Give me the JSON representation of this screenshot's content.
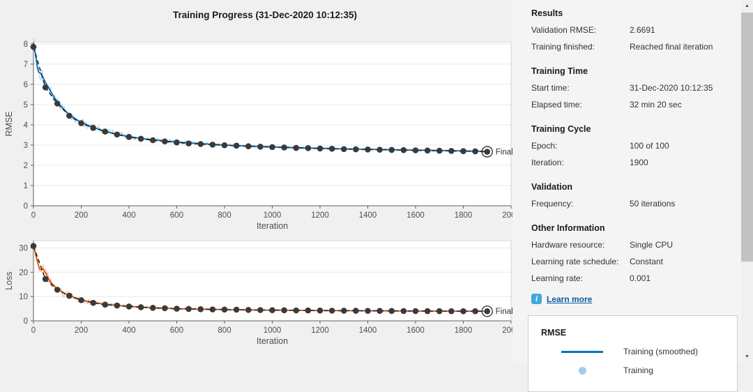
{
  "title": "Training Progress (31-Dec-2020 10:12:35)",
  "icons": {
    "scroll_up": "▲",
    "scroll_down": "▼",
    "info": "i"
  },
  "panel": {
    "sections": [
      {
        "heading": "Results",
        "rows": [
          {
            "label": "Validation RMSE:",
            "value": "2.6691"
          },
          {
            "label": "Training finished:",
            "value": "Reached final iteration"
          }
        ]
      },
      {
        "heading": "Training Time",
        "rows": [
          {
            "label": "Start time:",
            "value": "31-Dec-2020 10:12:35"
          },
          {
            "label": "Elapsed time:",
            "value": "32 min 20 sec"
          }
        ]
      },
      {
        "heading": "Training Cycle",
        "rows": [
          {
            "label": "Epoch:",
            "value": "100 of 100"
          },
          {
            "label": "Iteration:",
            "value": "1900"
          }
        ]
      },
      {
        "heading": "Validation",
        "rows": [
          {
            "label": "Frequency:",
            "value": "50 iterations"
          }
        ]
      },
      {
        "heading": "Other Information",
        "rows": [
          {
            "label": "Hardware resource:",
            "value": "Single CPU"
          },
          {
            "label": "Learning rate schedule:",
            "value": "Constant"
          },
          {
            "label": "Learning rate:",
            "value": "0.001"
          }
        ]
      }
    ],
    "learn_more": "Learn more",
    "legend": {
      "heading": "RMSE",
      "items": [
        {
          "label": "Training (smoothed)",
          "marker": "line",
          "color": "#0072bd"
        },
        {
          "label": "Training",
          "marker": "dot",
          "color": "#9ecfe8"
        }
      ]
    }
  },
  "chart_data": [
    {
      "type": "line",
      "name": "RMSE vs Iteration",
      "xlabel": "Iteration",
      "ylabel": "RMSE",
      "xlim": [
        0,
        2000
      ],
      "ylim": [
        0,
        8.1
      ],
      "xticks": [
        0,
        200,
        400,
        600,
        800,
        1000,
        1200,
        1400,
        1600,
        1800,
        2000
      ],
      "yticks": [
        0,
        1,
        2,
        3,
        4,
        5,
        6,
        7,
        8
      ],
      "grid": "horizontal",
      "series": [
        {
          "name": "Training",
          "style": "raw",
          "color": "#8fc4e8",
          "base": 1,
          "amp": [
            0.3,
            300,
            0.05
          ]
        },
        {
          "name": "Training (smoothed)",
          "style": "solid",
          "color": "#0072bd",
          "x": [
            0,
            8,
            16,
            22,
            30,
            40,
            50,
            65,
            80,
            100,
            120,
            150,
            175,
            200,
            250,
            300,
            350,
            400,
            450,
            500,
            600,
            700,
            800,
            900,
            1000,
            1100,
            1200,
            1300,
            1400,
            1500,
            1600,
            1700,
            1800,
            1900
          ],
          "y": [
            8.05,
            7.5,
            6.9,
            6.6,
            6.55,
            6.35,
            6.1,
            5.8,
            5.5,
            5.12,
            4.85,
            4.5,
            4.3,
            4.12,
            3.87,
            3.68,
            3.53,
            3.42,
            3.33,
            3.26,
            3.15,
            3.07,
            3.0,
            2.95,
            2.91,
            2.87,
            2.84,
            2.81,
            2.79,
            2.77,
            2.75,
            2.73,
            2.71,
            2.68
          ]
        },
        {
          "name": "Validation",
          "style": "dashed-markers",
          "line_color": "#262626",
          "marker_color": "#3a3a3a",
          "x": [
            0,
            50,
            100,
            150,
            200,
            250,
            300,
            350,
            400,
            450,
            500,
            550,
            600,
            650,
            700,
            750,
            800,
            850,
            900,
            950,
            1000,
            1050,
            1100,
            1150,
            1200,
            1250,
            1300,
            1350,
            1400,
            1450,
            1500,
            1550,
            1600,
            1650,
            1700,
            1750,
            1800,
            1850,
            1900
          ],
          "y": [
            7.85,
            5.85,
            5.05,
            4.45,
            4.08,
            3.85,
            3.67,
            3.52,
            3.4,
            3.31,
            3.24,
            3.18,
            3.13,
            3.08,
            3.05,
            3.02,
            2.99,
            2.97,
            2.94,
            2.92,
            2.9,
            2.88,
            2.86,
            2.85,
            2.83,
            2.82,
            2.8,
            2.79,
            2.78,
            2.77,
            2.76,
            2.75,
            2.74,
            2.73,
            2.72,
            2.71,
            2.7,
            2.69,
            2.6691
          ]
        }
      ],
      "final": {
        "label": "Final",
        "x": 1900,
        "y": 2.6691
      }
    },
    {
      "type": "line",
      "name": "Loss vs Iteration",
      "xlabel": "Iteration",
      "ylabel": "Loss",
      "xlim": [
        0,
        2000
      ],
      "ylim": [
        0,
        33
      ],
      "xticks": [
        0,
        200,
        400,
        600,
        800,
        1000,
        1200,
        1400,
        1600,
        1800,
        2000
      ],
      "yticks": [
        0,
        10,
        20,
        30
      ],
      "grid": "horizontal",
      "series": [
        {
          "name": "Training",
          "style": "raw",
          "color": "#f3a873",
          "base": 1,
          "amp": [
            2.2,
            250,
            0.28
          ]
        },
        {
          "name": "Training (smoothed)",
          "style": "solid",
          "color": "#d95319",
          "x": [
            0,
            8,
            16,
            25,
            32,
            40,
            50,
            65,
            80,
            100,
            125,
            150,
            200,
            250,
            300,
            350,
            400,
            450,
            500,
            600,
            700,
            800,
            900,
            1000,
            1100,
            1200,
            1300,
            1400,
            1500,
            1600,
            1700,
            1800,
            1900
          ],
          "y": [
            31,
            28,
            24.5,
            21.5,
            21,
            21.3,
            19.8,
            17,
            15,
            13.1,
            11.5,
            10.4,
            8.6,
            7.5,
            6.8,
            6.35,
            5.95,
            5.65,
            5.4,
            5.0,
            4.8,
            4.62,
            4.5,
            4.4,
            4.32,
            4.25,
            4.2,
            4.15,
            4.1,
            4.05,
            4.0,
            3.98,
            3.95
          ]
        },
        {
          "name": "Validation",
          "style": "dashed-markers",
          "line_color": "#262626",
          "marker_color": "#3a3a3a",
          "x": [
            0,
            50,
            100,
            150,
            200,
            250,
            300,
            350,
            400,
            450,
            500,
            550,
            600,
            650,
            700,
            750,
            800,
            850,
            900,
            950,
            1000,
            1050,
            1100,
            1150,
            1200,
            1250,
            1300,
            1350,
            1400,
            1450,
            1500,
            1550,
            1600,
            1650,
            1700,
            1750,
            1800,
            1850,
            1900
          ],
          "y": [
            30.8,
            17.2,
            12.8,
            10.3,
            8.5,
            7.4,
            6.7,
            6.3,
            5.9,
            5.6,
            5.35,
            5.2,
            5.0,
            4.9,
            4.8,
            4.7,
            4.65,
            4.6,
            4.5,
            4.45,
            4.4,
            4.35,
            4.3,
            4.28,
            4.25,
            4.2,
            4.18,
            4.15,
            4.12,
            4.1,
            4.08,
            4.05,
            4.02,
            4.0,
            4.0,
            3.98,
            3.97,
            3.96,
            3.95
          ]
        }
      ],
      "final": {
        "label": "Final",
        "x": 1900,
        "y": 3.95
      }
    }
  ],
  "colors": {
    "training_smoothed_rmse": "#0072bd",
    "training_raw_rmse": "#8fc4e8",
    "training_smoothed_loss": "#d95319",
    "training_raw_loss": "#f3a873",
    "validation": "#262626",
    "background": "#f0f0f0"
  }
}
